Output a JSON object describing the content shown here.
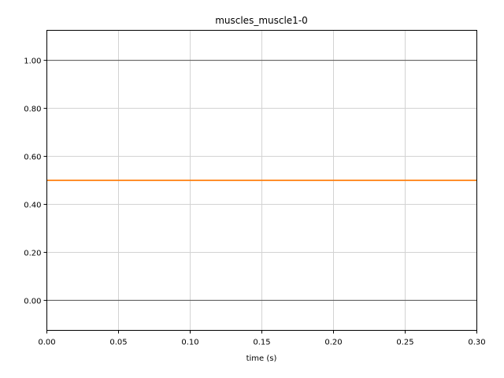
{
  "chart_data": {
    "type": "line",
    "title": "muscles_muscle1-0",
    "xlabel": "time (s)",
    "ylabel": "",
    "xlim": [
      0.0,
      0.3
    ],
    "ylim": [
      -0.125,
      1.125
    ],
    "x_ticks": [
      0.0,
      0.05,
      0.1,
      0.15,
      0.2,
      0.25,
      0.3
    ],
    "x_tick_labels": [
      "0.00",
      "0.05",
      "0.10",
      "0.15",
      "0.20",
      "0.25",
      "0.30"
    ],
    "y_ticks": [
      0.0,
      0.2,
      0.4,
      0.6,
      0.8,
      1.0
    ],
    "y_tick_labels": [
      "0.00",
      "0.20",
      "0.40",
      "0.60",
      "0.80",
      "1.00"
    ],
    "reference_lines": [
      0.0,
      1.0
    ],
    "grid": true,
    "series": [
      {
        "x": [
          0.0,
          0.3
        ],
        "values": [
          0.5,
          0.5
        ],
        "color": "#ff7f0e"
      }
    ]
  },
  "colors": {
    "series": "#ff7f0e",
    "grid": "#d3d3d3",
    "reference": "#555555",
    "axes": "#000000"
  }
}
